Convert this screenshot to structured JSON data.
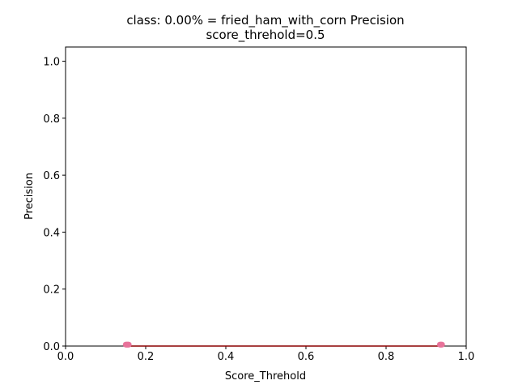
{
  "chart_data": {
    "type": "scatter",
    "title_line1": "class: 0.00% = fried_ham_with_corn Precision",
    "title_line2": "score_threhold=0.5",
    "xlabel": "Score_Threhold",
    "ylabel": "Precision",
    "xlim": [
      0.0,
      1.0
    ],
    "ylim": [
      0.0,
      1.05
    ],
    "xticks": [
      0.0,
      0.2,
      0.4,
      0.6,
      0.8,
      1.0
    ],
    "xtick_labels": [
      "0.0",
      "0.2",
      "0.4",
      "0.6",
      "0.8",
      "1.0"
    ],
    "yticks": [
      0.0,
      0.2,
      0.4,
      0.6,
      0.8,
      1.0
    ],
    "ytick_labels": [
      "0.0",
      "0.2",
      "0.4",
      "0.6",
      "0.8",
      "1.0"
    ],
    "grid": false,
    "line_color": "#8b0000",
    "marker_color": "#e8739a",
    "series": [
      {
        "x": [
          0.15,
          0.151,
          0.152,
          0.153,
          0.154,
          0.155,
          0.156,
          0.157,
          0.158,
          0.934,
          0.935,
          0.936,
          0.937,
          0.938,
          0.939,
          0.94
        ],
        "y": [
          0.005,
          0.005,
          0.005,
          0.005,
          0.005,
          0.005,
          0.005,
          0.005,
          0.005,
          0.005,
          0.005,
          0.005,
          0.005,
          0.005,
          0.005,
          0.005
        ]
      }
    ],
    "line": {
      "x": [
        0.15,
        0.94
      ],
      "y": [
        0.0,
        0.0
      ]
    }
  }
}
